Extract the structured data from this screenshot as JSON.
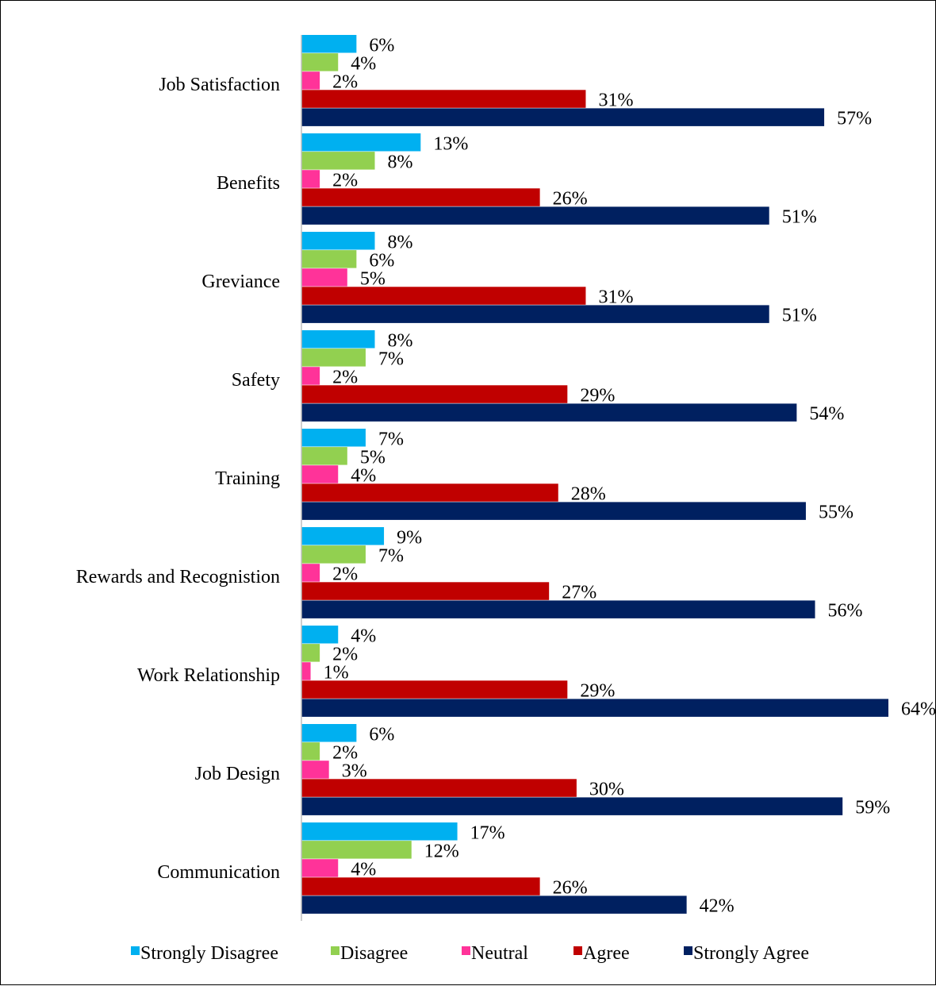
{
  "chart_data": {
    "type": "bar",
    "orientation": "horizontal",
    "categories": [
      "Job Satisfaction",
      "Benefits",
      "Greviance",
      "Safety",
      "Training",
      "Rewards and Recognistion",
      "Work Relationship",
      "Job Design",
      "Communication"
    ],
    "series": [
      {
        "name": "Strongly Disagree",
        "color": "#00B0F0",
        "values": [
          6,
          13,
          8,
          8,
          7,
          9,
          4,
          6,
          17
        ],
        "labels": [
          "6%",
          "13%",
          "8%",
          "8%",
          "7%",
          "9%",
          "4%",
          "6%",
          "17%"
        ]
      },
      {
        "name": "Disagree",
        "color": "#92D050",
        "values": [
          4,
          8,
          6,
          7,
          5,
          7,
          2,
          2,
          12
        ],
        "labels": [
          "4%",
          "8%",
          "6%",
          "7%",
          "5%",
          "7%",
          "2%",
          "2%",
          "12%"
        ]
      },
      {
        "name": "Neutral",
        "color": "#FF3399",
        "values": [
          2,
          2,
          5,
          2,
          4,
          2,
          1,
          3,
          4
        ],
        "labels": [
          "2%",
          "2%",
          "5%",
          "2%",
          "4%",
          "2%",
          "1%",
          "3%",
          "4%"
        ]
      },
      {
        "name": "Agree",
        "color": "#C00000",
        "values": [
          31,
          26,
          31,
          29,
          28,
          27,
          29,
          30,
          26
        ],
        "labels": [
          "31%",
          "26%",
          "31%",
          "29%",
          "28%",
          "27%",
          "29%",
          "30%",
          "26%"
        ]
      },
      {
        "name": "Strongly Agree",
        "color": "#002060",
        "values": [
          57,
          51,
          51,
          54,
          55,
          56,
          64,
          59,
          42
        ],
        "labels": [
          "57%",
          "51%",
          "51%",
          "54%",
          "55%",
          "56%",
          "64%",
          "59%",
          "42%"
        ]
      }
    ],
    "value_unit": "%",
    "xlim": [
      0,
      64
    ],
    "grid": false,
    "legend_position": "bottom"
  }
}
